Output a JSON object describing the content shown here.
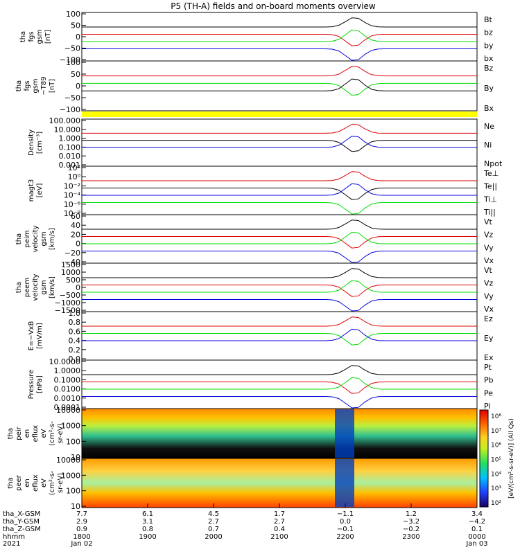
{
  "title": "P5 (TH-A) fields and on-board moments overview",
  "colors": {
    "black": "#000000",
    "red": "#dd0000",
    "green": "#00dd00",
    "blue": "#0000dd",
    "yellow": "#ffff00"
  },
  "chart_data": [
    {
      "id": "fgs_gsm",
      "type": "line",
      "ylabel": [
        "tha",
        "fgs",
        "gsm",
        "[nT]"
      ],
      "yticks": [
        "100",
        "50",
        "0",
        "−50",
        "−100"
      ],
      "ylim": [
        -100,
        100
      ],
      "legend": [
        {
          "name": "Bt",
          "color": "black"
        },
        {
          "name": "bz",
          "color": "red"
        },
        {
          "name": "by",
          "color": "green"
        },
        {
          "name": "bx",
          "color": "blue"
        }
      ]
    },
    {
      "id": "fgs_gsm_t89",
      "type": "line",
      "ylabel": [
        "tha",
        "fgs",
        "gsm",
        "−T89",
        "[nT]"
      ],
      "yticks": [
        "100",
        "50",
        "0",
        "−50",
        "−100"
      ],
      "ylim": [
        -120,
        120
      ],
      "legend": [
        {
          "name": "Bz",
          "color": "red"
        },
        {
          "name": "By",
          "color": "green"
        },
        {
          "name": "Bx",
          "color": "black"
        }
      ]
    },
    {
      "id": "density",
      "type": "line",
      "yscale": "log",
      "ylabel": [
        "Density",
        "[cm⁻³]"
      ],
      "yticks": [
        "100.000",
        "10.000",
        "1.000",
        "0.100",
        "0.010",
        "0.001"
      ],
      "legend": [
        {
          "name": "Ne",
          "color": "red"
        },
        {
          "name": "Ni",
          "color": "black"
        },
        {
          "name": "Npot",
          "color": "blue"
        }
      ]
    },
    {
      "id": "temperature",
      "type": "line",
      "yscale": "log",
      "ylabel": [
        "magt3",
        "[eV]"
      ],
      "yticks": [
        "10²",
        "10⁰",
        "10⁻²",
        "10⁻⁴",
        "10⁻⁶",
        "10⁻⁸"
      ],
      "legend": [
        {
          "name": "Te⊥",
          "color": "red"
        },
        {
          "name": "Te||",
          "color": "black"
        },
        {
          "name": "Ti⊥",
          "color": "blue"
        },
        {
          "name": "Ti||",
          "color": "green"
        }
      ]
    },
    {
      "id": "peim_velocity",
      "type": "line",
      "ylabel": [
        "tha",
        "peim",
        "velocity",
        "gsm",
        "[km/s]"
      ],
      "yticks": [
        "60",
        "40",
        "20",
        "0",
        "−20",
        "−40"
      ],
      "ylim": [
        -40,
        60
      ],
      "legend": [
        {
          "name": "Vt",
          "color": "black"
        },
        {
          "name": "Vz",
          "color": "red"
        },
        {
          "name": "Vy",
          "color": "green"
        },
        {
          "name": "Vx",
          "color": "blue"
        }
      ]
    },
    {
      "id": "peem_velocity",
      "type": "line",
      "ylabel": [
        "tha",
        "peem",
        "velocity",
        "gsm",
        "[km/s]"
      ],
      "yticks": [
        "1500",
        "1000",
        "500",
        "0",
        "−500",
        "−1000",
        "−1500"
      ],
      "ylim": [
        -1500,
        1500
      ],
      "legend": [
        {
          "name": "Vt",
          "color": "black"
        },
        {
          "name": "Vz",
          "color": "red"
        },
        {
          "name": "Vy",
          "color": "green"
        },
        {
          "name": "Vx",
          "color": "blue"
        }
      ]
    },
    {
      "id": "e_field",
      "type": "line",
      "ylabel": [
        "E=−VxB",
        "[mV/m]"
      ],
      "yticks": [
        "1.0",
        "0.8",
        "0.6",
        "0.4",
        "0.2",
        "0.0"
      ],
      "ylim": [
        0,
        1
      ],
      "legend": [
        {
          "name": "Ez",
          "color": "red"
        },
        {
          "name": "Ey",
          "color": "green"
        },
        {
          "name": "Ex",
          "color": "blue"
        }
      ]
    },
    {
      "id": "pressure",
      "type": "line",
      "yscale": "log",
      "ylabel": [
        "Pressure",
        "[nPa]"
      ],
      "yticks": [
        "10.0000",
        "1.0000",
        "0.1000",
        "0.0100",
        "0.0010",
        "0.0001"
      ],
      "legend": [
        {
          "name": "Pt",
          "color": "black"
        },
        {
          "name": "Pb",
          "color": "red"
        },
        {
          "name": "Pe",
          "color": "green"
        },
        {
          "name": "Pi",
          "color": "blue"
        }
      ]
    },
    {
      "id": "peir_spectrogram",
      "type": "heatmap",
      "ylabel": [
        "tha",
        "peir",
        "en",
        "eflux",
        "eV",
        "(cm²-s-",
        "sr-eV)"
      ],
      "yticks": [
        "10000",
        "1000",
        "100",
        "10"
      ]
    },
    {
      "id": "peer_spectrogram",
      "type": "heatmap",
      "ylabel": [
        "tha",
        "peer",
        "en",
        "eflux",
        "eV",
        "(cm²-s-",
        "sr-eV)"
      ],
      "yticks": [
        "10000",
        "1000",
        "100",
        "10"
      ]
    }
  ],
  "colorbar": {
    "label": "[eV/(cm²-s-sr-eV)] (All Qs)",
    "ticks": [
      "10⁸",
      "10⁷",
      "10⁶",
      "10⁵",
      "10⁴",
      "10³",
      "10²"
    ]
  },
  "x_axis": {
    "rows": [
      {
        "label": "tha_X-GSM",
        "values": [
          "7.7",
          "6.1",
          "4.5",
          "1.7",
          "−1.1",
          "1.2",
          "3.4"
        ]
      },
      {
        "label": "tha_Y-GSM",
        "values": [
          "2.9",
          "3.1",
          "2.7",
          "2.7",
          "0.0",
          "−3.2",
          "−4.2"
        ]
      },
      {
        "label": "tha_Z-GSM",
        "values": [
          "0.9",
          "0.8",
          "0.7",
          "0.4",
          "−0.1",
          "−0.2",
          "0.1"
        ]
      },
      {
        "label": "hhmm",
        "values": [
          "1800",
          "1900",
          "2000",
          "2100",
          "2200",
          "2300",
          "0000"
        ]
      },
      {
        "label": "2021",
        "values": [
          "Jan 02",
          "",
          "",
          "",
          "",
          "",
          "Jan 03"
        ]
      }
    ]
  }
}
